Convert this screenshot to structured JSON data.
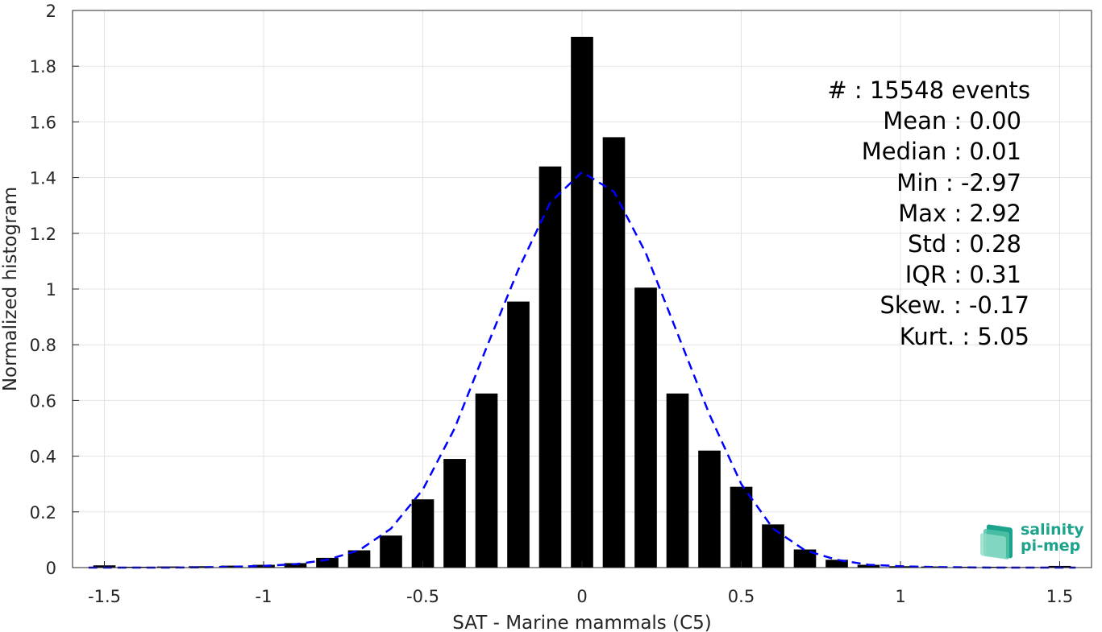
{
  "chart_data": {
    "type": "bar",
    "xlabel": "SAT - Marine mammals (C5)",
    "ylabel": "Normalized histogram",
    "xlim": [
      -1.6,
      1.6
    ],
    "ylim": [
      0,
      2
    ],
    "xticks": [
      -1.5,
      -1,
      -0.5,
      0,
      0.5,
      1,
      1.5
    ],
    "xtick_labels": [
      "-1.5",
      "-1",
      "-0.5",
      "0",
      "0.5",
      "1",
      "1.5"
    ],
    "yticks": [
      0,
      0.2,
      0.4,
      0.6,
      0.8,
      1,
      1.2,
      1.4,
      1.6,
      1.8,
      2
    ],
    "ytick_labels": [
      "0",
      "0.2",
      "0.4",
      "0.6",
      "0.8",
      "1",
      "1.2",
      "1.4",
      "1.6",
      "1.8",
      "2"
    ],
    "grid": true,
    "bar_color": "#000000",
    "bars": {
      "x": [
        -1.5,
        -1.4,
        -1.3,
        -1.2,
        -1.1,
        -1.0,
        -0.9,
        -0.8,
        -0.7,
        -0.6,
        -0.5,
        -0.4,
        -0.3,
        -0.2,
        -0.1,
        0.0,
        0.1,
        0.2,
        0.3,
        0.4,
        0.5,
        0.6,
        0.7,
        0.8,
        0.9,
        1.0,
        1.1,
        1.2,
        1.3,
        1.4,
        1.5
      ],
      "values": [
        0.008,
        0.003,
        0.004,
        0.005,
        0.007,
        0.01,
        0.016,
        0.035,
        0.062,
        0.115,
        0.245,
        0.39,
        0.625,
        0.955,
        1.44,
        1.905,
        1.545,
        1.005,
        0.625,
        0.42,
        0.29,
        0.155,
        0.065,
        0.028,
        0.01,
        0.005,
        0.004,
        0.003,
        0.003,
        0.002,
        0.006
      ]
    },
    "fit_curve": {
      "color": "#0000ff",
      "style": "dashed",
      "x": [
        -1.55,
        -1.4,
        -1.3,
        -1.2,
        -1.1,
        -1.0,
        -0.9,
        -0.8,
        -0.7,
        -0.6,
        -0.5,
        -0.4,
        -0.3,
        -0.2,
        -0.1,
        0.0,
        0.1,
        0.2,
        0.3,
        0.4,
        0.5,
        0.6,
        0.7,
        0.8,
        0.9,
        1.0,
        1.1,
        1.2,
        1.3,
        1.4,
        1.55
      ],
      "values": [
        0.0,
        0.0,
        0.0,
        0.001,
        0.003,
        0.006,
        0.012,
        0.028,
        0.062,
        0.14,
        0.28,
        0.5,
        0.79,
        1.07,
        1.31,
        1.42,
        1.35,
        1.13,
        0.84,
        0.55,
        0.3,
        0.14,
        0.062,
        0.028,
        0.01,
        0.005,
        0.002,
        0.001,
        0.0,
        0.0,
        0.0
      ]
    },
    "stats": {
      "events": "#  : 15548 events",
      "mean": "Mean : 0.00",
      "median": "Median : 0.01",
      "min": "Min : -2.97",
      "max": "Max : 2.92",
      "std": "Std : 0.28",
      "iqr": "IQR : 0.31",
      "skew": "Skew. : -0.17",
      "kurt": "Kurt. : 5.05"
    }
  },
  "logo": {
    "line1": "salinity",
    "line2": "pi-mep"
  }
}
